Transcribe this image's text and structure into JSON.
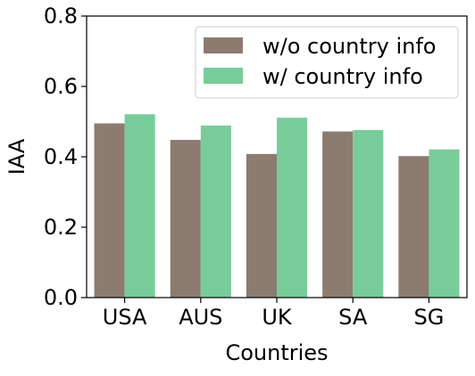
{
  "chart_data": {
    "type": "bar",
    "title": "",
    "xlabel": "Countries",
    "ylabel": "IAA",
    "ylim": [
      0.0,
      0.8
    ],
    "yticks": [
      0.0,
      0.2,
      0.4,
      0.6,
      0.8
    ],
    "ytick_labels": [
      "0.0",
      "0.2",
      "0.4",
      "0.6",
      "0.8"
    ],
    "categories": [
      "USA",
      "AUS",
      "UK",
      "SA",
      "SG"
    ],
    "series": [
      {
        "name": "w/o country info",
        "color": "#8c7b70",
        "values": [
          0.495,
          0.448,
          0.408,
          0.472,
          0.402
        ]
      },
      {
        "name": "w/ country info",
        "color": "#78cc9a",
        "values": [
          0.521,
          0.489,
          0.511,
          0.476,
          0.421
        ]
      }
    ],
    "legend": {
      "position": "top-right"
    },
    "grid": false
  }
}
